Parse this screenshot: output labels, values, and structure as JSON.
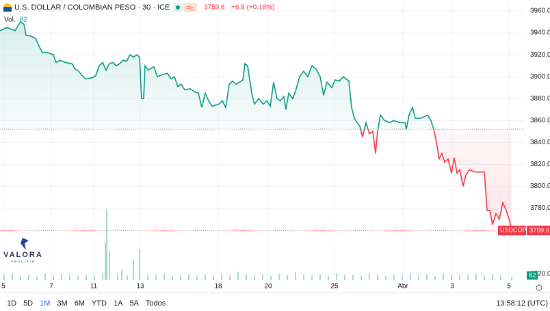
{
  "chart_data": {
    "type": "line",
    "title": "U.S. DOLLAR / COLOMBIAN PESO · 30 · ICE",
    "last_price": 3759.6,
    "change_label": "+6.8 (+0.18%)",
    "symbol": "USDCOP",
    "baseline": 3852,
    "up_color": "#089981",
    "down_color": "#f23645",
    "x": [
      0,
      10,
      22,
      30,
      35,
      38,
      45,
      52,
      57,
      62,
      70,
      78,
      82,
      88,
      95,
      105,
      110,
      115,
      120,
      125,
      135,
      140,
      145,
      150,
      155,
      160,
      165,
      170,
      175,
      180,
      185,
      190,
      195,
      200,
      204,
      207,
      210,
      212,
      217,
      225,
      230,
      237,
      245,
      250,
      255,
      260,
      265,
      270,
      278,
      285,
      290,
      295,
      300,
      305,
      310,
      320,
      325,
      330,
      335,
      340,
      345,
      350,
      355,
      358,
      362,
      368,
      372,
      378,
      385,
      390,
      395,
      400,
      405,
      410,
      415,
      418,
      422,
      428,
      432,
      438,
      444,
      450,
      456,
      462,
      468,
      473,
      478,
      485,
      490,
      496,
      502,
      510,
      514,
      518,
      522,
      526,
      530,
      535,
      540,
      545,
      549,
      552,
      556,
      562,
      570,
      575,
      585,
      592,
      594,
      598,
      603,
      607,
      615,
      625,
      630,
      635,
      638,
      642,
      646,
      650,
      655,
      660,
      664,
      668,
      672,
      677,
      681,
      686,
      695,
      708,
      712,
      716,
      720,
      725,
      730,
      735,
      740,
      745,
      748
    ],
    "values": [
      3942,
      3945,
      3942,
      3950,
      3948,
      3938,
      3937,
      3935,
      3928,
      3922,
      3922,
      3920,
      3913,
      3915,
      3913,
      3912,
      3907,
      3905,
      3901,
      3898,
      3899,
      3901,
      3910,
      3913,
      3906,
      3912,
      3913,
      3910,
      3912,
      3915,
      3914,
      3920,
      3918,
      3920,
      3918,
      3880,
      3880,
      3910,
      3906,
      3909,
      3900,
      3902,
      3903,
      3898,
      3900,
      3891,
      3893,
      3888,
      3889,
      3886,
      3885,
      3872,
      3885,
      3878,
      3873,
      3875,
      3878,
      3872,
      3893,
      3896,
      3893,
      3895,
      3897,
      3912,
      3910,
      3885,
      3875,
      3880,
      3875,
      3878,
      3873,
      3895,
      3880,
      3878,
      3882,
      3870,
      3885,
      3880,
      3887,
      3900,
      3905,
      3900,
      3910,
      3907,
      3900,
      3883,
      3895,
      3890,
      3897,
      3896,
      3900,
      3896,
      3872,
      3862,
      3858,
      3855,
      3845,
      3858,
      3848,
      3850,
      3830,
      3850,
      3865,
      3860,
      3858,
      3860,
      3858,
      3858,
      3852,
      3865,
      3872,
      3862,
      3862,
      3865,
      3860,
      3850,
      3840,
      3825,
      3830,
      3822,
      3825,
      3812,
      3826,
      3812,
      3815,
      3800,
      3810,
      3815,
      3813,
      3813,
      3778,
      3778,
      3765,
      3775,
      3770,
      3785,
      3778,
      3768,
      3759.6
    ],
    "xlim": [
      0,
      766
    ],
    "xticks": [
      {
        "value": 5,
        "label": "5"
      },
      {
        "value": 75,
        "label": "7"
      },
      {
        "value": 137,
        "label": "11"
      },
      {
        "value": 205,
        "label": "13"
      },
      {
        "value": 319,
        "label": "18"
      },
      {
        "value": 392,
        "label": "20"
      },
      {
        "value": 489,
        "label": "25"
      },
      {
        "value": 589,
        "label": "Abr"
      },
      {
        "value": 661,
        "label": "3"
      },
      {
        "value": 744,
        "label": "5"
      }
    ],
    "ylim": [
      3713,
      3970
    ],
    "yticks": [
      {
        "value": 3720,
        "label": "3720.0"
      },
      {
        "value": 3780,
        "label": "3780.0"
      },
      {
        "value": 3800,
        "label": "3800.0"
      },
      {
        "value": 3820,
        "label": "3820.0"
      },
      {
        "value": 3840,
        "label": "3840.0"
      },
      {
        "value": 3860,
        "label": "3860.0"
      },
      {
        "value": 3880,
        "label": "3880.0"
      },
      {
        "value": 3900,
        "label": "3900.0"
      },
      {
        "value": 3920,
        "label": "3920.0"
      },
      {
        "value": 3940,
        "label": "3940.0"
      },
      {
        "value": 3960,
        "label": "3960.0"
      }
    ],
    "grid": true,
    "volume": {
      "label": "Vol.",
      "last": 82,
      "color": "#8fd0c4",
      "vlim": [
        0,
        1800
      ],
      "x": [
        6,
        18,
        30,
        42,
        54,
        66,
        78,
        90,
        102,
        114,
        126,
        138,
        150,
        154,
        156,
        160,
        172,
        178,
        186,
        195,
        204,
        216,
        228,
        240,
        252,
        264,
        276,
        288,
        300,
        312,
        324,
        336,
        348,
        360,
        372,
        384,
        396,
        408,
        420,
        432,
        444,
        456,
        468,
        480,
        492,
        504,
        516,
        528,
        540,
        552,
        564,
        576,
        588,
        600,
        612,
        624,
        636,
        648,
        660,
        672,
        684,
        696,
        708,
        720,
        732,
        748
      ],
      "values": [
        120,
        150,
        100,
        130,
        90,
        160,
        110,
        140,
        120,
        100,
        130,
        110,
        150,
        900,
        1700,
        700,
        140,
        250,
        120,
        500,
        750,
        130,
        110,
        150,
        100,
        120,
        140,
        110,
        130,
        100,
        160,
        120,
        200,
        140,
        110,
        130,
        100,
        150,
        120,
        200,
        130,
        110,
        140,
        100,
        170,
        120,
        130,
        110,
        160,
        140,
        100,
        130,
        120,
        150,
        110,
        140,
        100,
        160,
        130,
        120,
        110,
        150,
        100,
        140,
        120,
        82
      ]
    }
  },
  "logo": {
    "name": "VALORA",
    "tagline": "ANALITIK"
  },
  "toolbar": {
    "ranges": [
      "1D",
      "5D",
      "1M",
      "3M",
      "6M",
      "YTD",
      "1A",
      "5A",
      "Todos"
    ],
    "clock": "13:58:12 (UTC)"
  }
}
